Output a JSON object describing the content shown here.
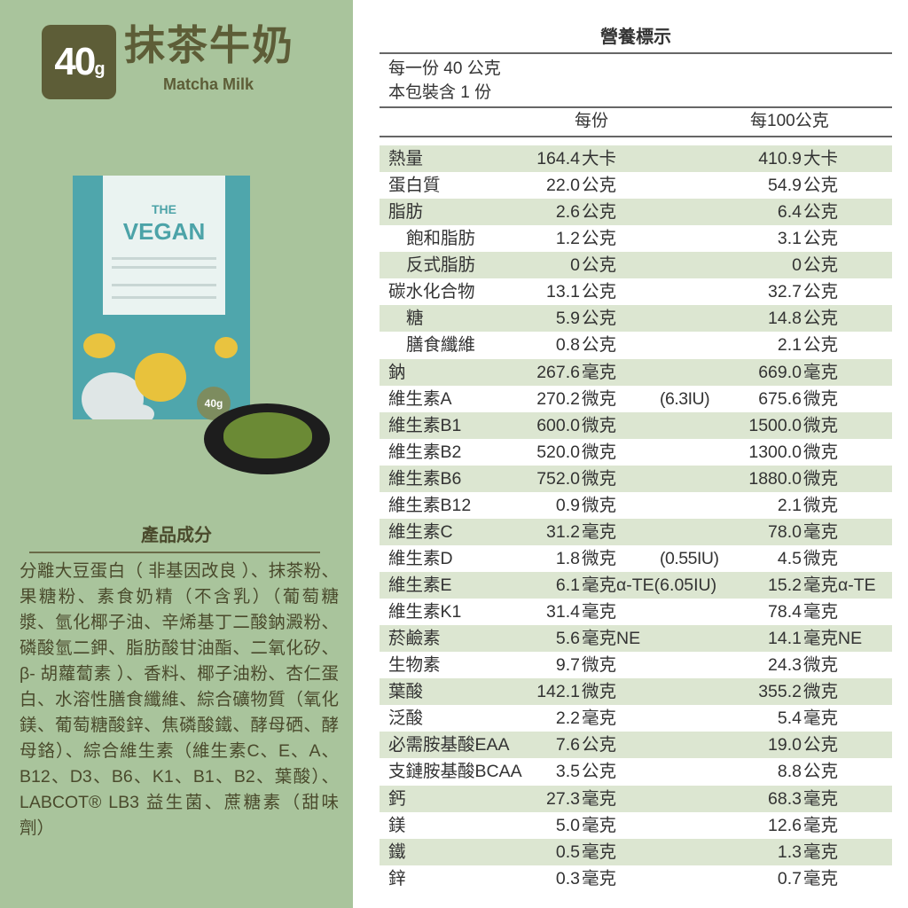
{
  "product": {
    "weight_num": "40",
    "weight_unit": "g",
    "name_zh": "抹茶牛奶",
    "name_en": "Matcha Milk"
  },
  "bag": {
    "brand_top": "THE",
    "brand": "VEGAN",
    "weight": "40g"
  },
  "ingredients": {
    "title": "產品成分",
    "text": "分離大豆蛋白（ 非基因改良 ）、抹茶粉、果糖粉、素食奶精（不含乳）（葡萄糖漿、氫化椰子油、辛烯基丁二酸鈉澱粉、磷酸氫二鉀、脂肪酸甘油酯、二氧化矽、β- 胡蘿蔔素 ）、香料、椰子油粉、杏仁蛋白、水溶性膳食纖維、綜合礦物質（氧化鎂、葡萄糖酸鋅、焦磷酸鐵、酵母硒、酵母鉻）、綜合維生素（維生素C、E、A、B12、D3、B6、K1、B1、B2、葉酸）、LABCOT® LB3 益生菌、蔗糖素（甜味劑）"
  },
  "nutrition": {
    "title": "營養標示",
    "serving": "每一份 40 公克",
    "servings": "本包裝含 1 份",
    "col_per": "每份",
    "col_100": "每100公克",
    "rows": [
      {
        "name": "熱量",
        "v1": "164.4",
        "u1": "大卡",
        "v2": "410.9",
        "u2": "大卡"
      },
      {
        "name": "蛋白質",
        "v1": "22.0",
        "u1": "公克",
        "v2": "54.9",
        "u2": "公克"
      },
      {
        "name": "脂肪",
        "v1": "2.6",
        "u1": "公克",
        "v2": "6.4",
        "u2": "公克"
      },
      {
        "name": "飽和脂肪",
        "indent": true,
        "v1": "1.2",
        "u1": "公克",
        "v2": "3.1",
        "u2": "公克"
      },
      {
        "name": "反式脂肪",
        "indent": true,
        "v1": "0",
        "u1": "公克",
        "v2": "0",
        "u2": "公克"
      },
      {
        "name": "碳水化合物",
        "v1": "13.1",
        "u1": "公克",
        "v2": "32.7",
        "u2": "公克"
      },
      {
        "name": "糖",
        "indent": true,
        "v1": "5.9",
        "u1": "公克",
        "v2": "14.8",
        "u2": "公克"
      },
      {
        "name": "膳食纖維",
        "indent": true,
        "v1": "0.8",
        "u1": "公克",
        "v2": "2.1",
        "u2": "公克"
      },
      {
        "name": "鈉",
        "v1": "267.6",
        "u1": "毫克",
        "v2": "669.0",
        "u2": "毫克"
      },
      {
        "name": "維生素A",
        "v1": "270.2",
        "u1": "微克",
        "iu": "(6.3IU)",
        "v2": "675.6",
        "u2": "微克"
      },
      {
        "name": "維生素B1",
        "v1": "600.0",
        "u1": "微克",
        "v2": "1500.0",
        "u2": "微克"
      },
      {
        "name": "維生素B2",
        "v1": "520.0",
        "u1": "微克",
        "v2": "1300.0",
        "u2": "微克"
      },
      {
        "name": "維生素B6",
        "v1": "752.0",
        "u1": "微克",
        "v2": "1880.0",
        "u2": "微克"
      },
      {
        "name": "維生素B12",
        "v1": "0.9",
        "u1": "微克",
        "v2": "2.1",
        "u2": "微克"
      },
      {
        "name": "維生素C",
        "v1": "31.2",
        "u1": "毫克",
        "v2": "78.0",
        "u2": "毫克"
      },
      {
        "name": "維生素D",
        "v1": "1.8",
        "u1": "微克",
        "iu": "(0.55IU)",
        "v2": "4.5",
        "u2": "微克"
      },
      {
        "name": "維生素E",
        "v1": "6.1",
        "u1": "毫克α-TE(6.05IU)",
        "v2": "15.2",
        "u2": "毫克α-TE"
      },
      {
        "name": "維生素K1",
        "v1": "31.4",
        "u1": "毫克",
        "v2": "78.4",
        "u2": "毫克"
      },
      {
        "name": "菸鹼素",
        "v1": "5.6",
        "u1": "毫克NE",
        "v2": "14.1",
        "u2": "毫克NE"
      },
      {
        "name": "生物素",
        "v1": "9.7",
        "u1": "微克",
        "v2": "24.3",
        "u2": "微克"
      },
      {
        "name": "葉酸",
        "v1": "142.1",
        "u1": "微克",
        "v2": "355.2",
        "u2": "微克"
      },
      {
        "name": "泛酸",
        "v1": "2.2",
        "u1": "毫克",
        "v2": "5.4",
        "u2": "毫克"
      },
      {
        "name": "必需胺基酸EAA",
        "v1": "7.6",
        "u1": "公克",
        "v2": "19.0",
        "u2": "公克"
      },
      {
        "name": "支鏈胺基酸BCAA",
        "v1": "3.5",
        "u1": "公克",
        "v2": "8.8",
        "u2": "公克"
      },
      {
        "name": "鈣",
        "v1": "27.3",
        "u1": "毫克",
        "v2": "68.3",
        "u2": "毫克"
      },
      {
        "name": "鎂",
        "v1": "5.0",
        "u1": "毫克",
        "v2": "12.6",
        "u2": "毫克"
      },
      {
        "name": "鐵",
        "v1": "0.5",
        "u1": "毫克",
        "v2": "1.3",
        "u2": "毫克"
      },
      {
        "name": "鋅",
        "v1": "0.3",
        "u1": "毫克",
        "v2": "0.7",
        "u2": "毫克"
      }
    ]
  }
}
